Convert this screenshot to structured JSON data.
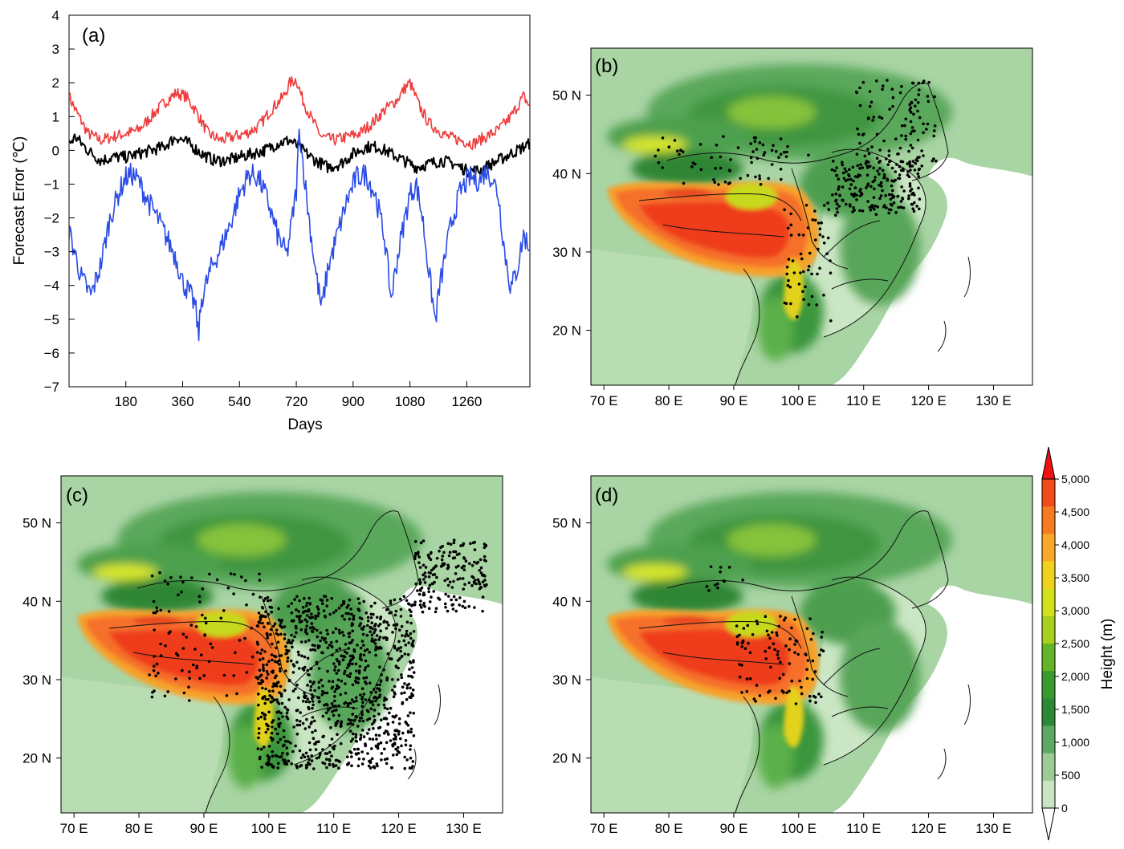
{
  "chart_data": [
    {
      "panel": "(a)",
      "type": "line",
      "xlabel": "Days",
      "ylabel": "Forecast Error (℃)",
      "xlim": [
        0,
        1460
      ],
      "ylim": [
        -7,
        4
      ],
      "xticks": [
        180,
        360,
        540,
        720,
        900,
        1080,
        1260
      ],
      "yticks": [
        4,
        3,
        2,
        1,
        0,
        -1,
        -2,
        -3,
        -4,
        -5,
        -6,
        -7
      ],
      "xtick_labels": [
        "180",
        "360",
        "540",
        "720",
        "900",
        "1080",
        "1260"
      ],
      "ytick_labels": [
        "4",
        "3",
        "2",
        "1",
        "0",
        "−1",
        "−2",
        "−3",
        "−4",
        "−5",
        "−6",
        "−7"
      ],
      "series": [
        {
          "name": "red",
          "color": "#ef3b3b",
          "x": [
            0,
            20,
            60,
            100,
            140,
            180,
            220,
            260,
            300,
            340,
            370,
            400,
            440,
            480,
            520,
            560,
            600,
            640,
            680,
            700,
            720,
            740,
            770,
            800,
            840,
            880,
            920,
            960,
            1000,
            1040,
            1060,
            1080,
            1110,
            1140,
            1170,
            1200,
            1240,
            1280,
            1320,
            1360,
            1400,
            1440,
            1460
          ],
          "values": [
            1.6,
            1.2,
            0.5,
            0.3,
            0.4,
            0.5,
            0.6,
            1.0,
            1.4,
            1.7,
            1.6,
            1.2,
            0.5,
            0.3,
            0.4,
            0.5,
            0.7,
            1.2,
            1.6,
            2.0,
            2.1,
            1.5,
            0.9,
            0.4,
            0.3,
            0.4,
            0.5,
            0.8,
            1.2,
            1.5,
            1.8,
            2.0,
            1.3,
            0.8,
            0.6,
            0.4,
            0.3,
            0.2,
            0.4,
            0.6,
            1.0,
            1.6,
            1.3
          ]
        },
        {
          "name": "black",
          "color": "#000000",
          "x": [
            0,
            20,
            60,
            100,
            140,
            180,
            220,
            260,
            300,
            340,
            380,
            420,
            460,
            500,
            540,
            580,
            620,
            660,
            700,
            740,
            780,
            820,
            860,
            900,
            940,
            980,
            1020,
            1060,
            1100,
            1140,
            1180,
            1220,
            1260,
            1300,
            1340,
            1380,
            1420,
            1460
          ],
          "values": [
            0.2,
            0.4,
            0.0,
            -0.3,
            -0.2,
            -0.2,
            -0.1,
            0.0,
            0.1,
            0.4,
            0.2,
            -0.1,
            -0.3,
            -0.3,
            -0.2,
            -0.1,
            0.0,
            0.2,
            0.3,
            0.0,
            -0.3,
            -0.5,
            -0.4,
            -0.1,
            0.1,
            0.1,
            -0.1,
            -0.3,
            -0.5,
            -0.4,
            -0.3,
            -0.4,
            -0.6,
            -0.6,
            -0.4,
            -0.2,
            0.0,
            0.2
          ]
        },
        {
          "name": "blue",
          "color": "#2b4ce6",
          "x": [
            0,
            20,
            40,
            70,
            100,
            130,
            160,
            180,
            200,
            220,
            250,
            280,
            310,
            340,
            360,
            380,
            400,
            410,
            420,
            450,
            480,
            510,
            540,
            570,
            600,
            630,
            660,
            690,
            720,
            730,
            740,
            760,
            780,
            800,
            820,
            850,
            880,
            910,
            940,
            970,
            1000,
            1010,
            1020,
            1040,
            1060,
            1080,
            1100,
            1120,
            1140,
            1150,
            1160,
            1170,
            1190,
            1210,
            1240,
            1270,
            1300,
            1320,
            1340,
            1360,
            1380,
            1400,
            1420,
            1440,
            1460
          ],
          "values": [
            -2.4,
            -3.1,
            -3.8,
            -4.3,
            -3.4,
            -2.0,
            -1.2,
            -0.8,
            -0.7,
            -0.9,
            -1.5,
            -2.0,
            -2.6,
            -3.2,
            -3.9,
            -4.2,
            -4.6,
            -5.5,
            -4.4,
            -3.5,
            -2.9,
            -2.2,
            -1.3,
            -0.7,
            -0.8,
            -1.5,
            -2.5,
            -3.1,
            -1.2,
            0.7,
            -0.3,
            -2.0,
            -3.5,
            -4.7,
            -3.5,
            -2.5,
            -1.5,
            -0.8,
            -0.7,
            -1.3,
            -2.6,
            -3.5,
            -4.4,
            -3.2,
            -2.2,
            -1.3,
            -1.0,
            -2.0,
            -3.6,
            -4.3,
            -5.1,
            -4.3,
            -3.2,
            -2.2,
            -1.2,
            -0.8,
            -0.9,
            -0.6,
            -0.8,
            -1.3,
            -3.0,
            -4.1,
            -3.5,
            -2.5,
            -2.9
          ]
        }
      ]
    },
    {
      "panel": "(b)",
      "type": "map",
      "xlim": [
        68,
        136
      ],
      "ylim": [
        13,
        56
      ],
      "xtick_labels": [
        "70 E",
        "80 E",
        "90 E",
        "100 E",
        "110 E",
        "120 E",
        "130 E"
      ],
      "ytick_labels": [
        "50 N",
        "40 N",
        "30 N",
        "20 N"
      ],
      "stations": "mainland China, concentrated in north China plain"
    },
    {
      "panel": "(c)",
      "type": "map",
      "xlim": [
        68,
        136
      ],
      "ylim": [
        13,
        56
      ],
      "xtick_labels": [
        "70 E",
        "80 E",
        "90 E",
        "100 E",
        "110 E",
        "120 E",
        "130 E"
      ],
      "ytick_labels": [
        "50 N",
        "40 N",
        "30 N",
        "20 N"
      ],
      "stations": "dense in southern and eastern China"
    },
    {
      "panel": "(d)",
      "type": "map",
      "xlim": [
        68,
        136
      ],
      "ylim": [
        13,
        56
      ],
      "xtick_labels": [
        "70 E",
        "80 E",
        "90 E",
        "100 E",
        "110 E",
        "120 E",
        "130 E"
      ],
      "ytick_labels": [
        "50 N",
        "40 N",
        "30 N",
        "20 N"
      ],
      "stations": "southeastern Tibetan Plateau"
    }
  ],
  "colorbar": {
    "label": "Height (m)",
    "ticks": [
      "5,000",
      "4,500",
      "4,000",
      "3,500",
      "3,000",
      "2,500",
      "2,000",
      "1,500",
      "1,000",
      "500",
      "0"
    ],
    "colors": [
      "#ee1111",
      "#f24a1a",
      "#f77a20",
      "#f9a82a",
      "#f0d21e",
      "#d4e21c",
      "#a6d01c",
      "#64b428",
      "#3a9a2e",
      "#2c8a36",
      "#5da862",
      "#9ccb96",
      "#c9e4c2"
    ]
  },
  "panel_labels": [
    "(a)",
    "(b)",
    "(c)",
    "(d)"
  ]
}
